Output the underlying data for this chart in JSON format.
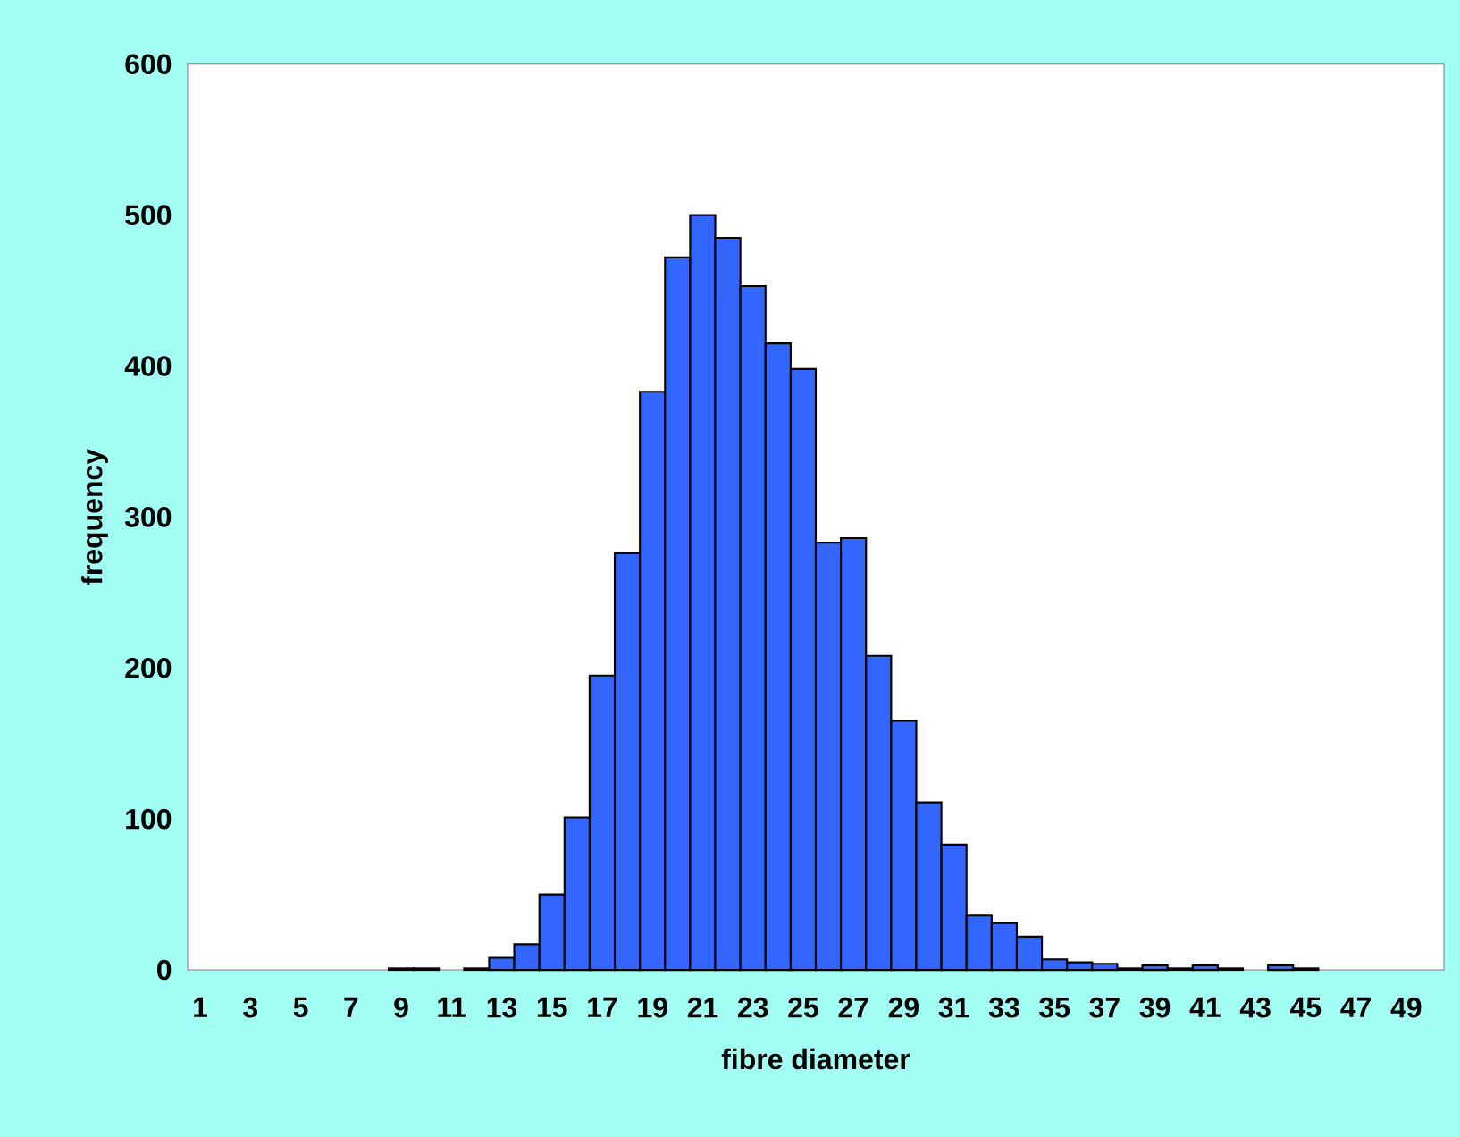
{
  "chart_data": {
    "type": "bar",
    "xlabel": "fibre diameter",
    "ylabel": "frequency",
    "categories": [
      "1",
      null,
      "3",
      null,
      "5",
      null,
      "7",
      null,
      "9",
      null,
      "11",
      null,
      "13",
      null,
      "15",
      null,
      "17",
      null,
      "19",
      null,
      "21",
      null,
      "23",
      null,
      "25",
      null,
      "27",
      null,
      "29",
      null,
      "31",
      null,
      "33",
      null,
      "35",
      null,
      "37",
      null,
      "39",
      null,
      "41",
      null,
      "43",
      null,
      "45",
      null,
      "47",
      null,
      "49",
      null
    ],
    "values": [
      0,
      0,
      0,
      0,
      0,
      0,
      0,
      0,
      1,
      1,
      0,
      1,
      8,
      17,
      50,
      101,
      195,
      276,
      383,
      472,
      500,
      485,
      453,
      415,
      398,
      283,
      286,
      208,
      165,
      111,
      83,
      36,
      31,
      22,
      7,
      5,
      4,
      1,
      3,
      1,
      3,
      1,
      0,
      3,
      1,
      0,
      0,
      0,
      0,
      0
    ],
    "color": "#3366ff",
    "ylim": [
      0,
      600
    ],
    "yticks": [
      0,
      100,
      200,
      300,
      400,
      500,
      600
    ]
  }
}
